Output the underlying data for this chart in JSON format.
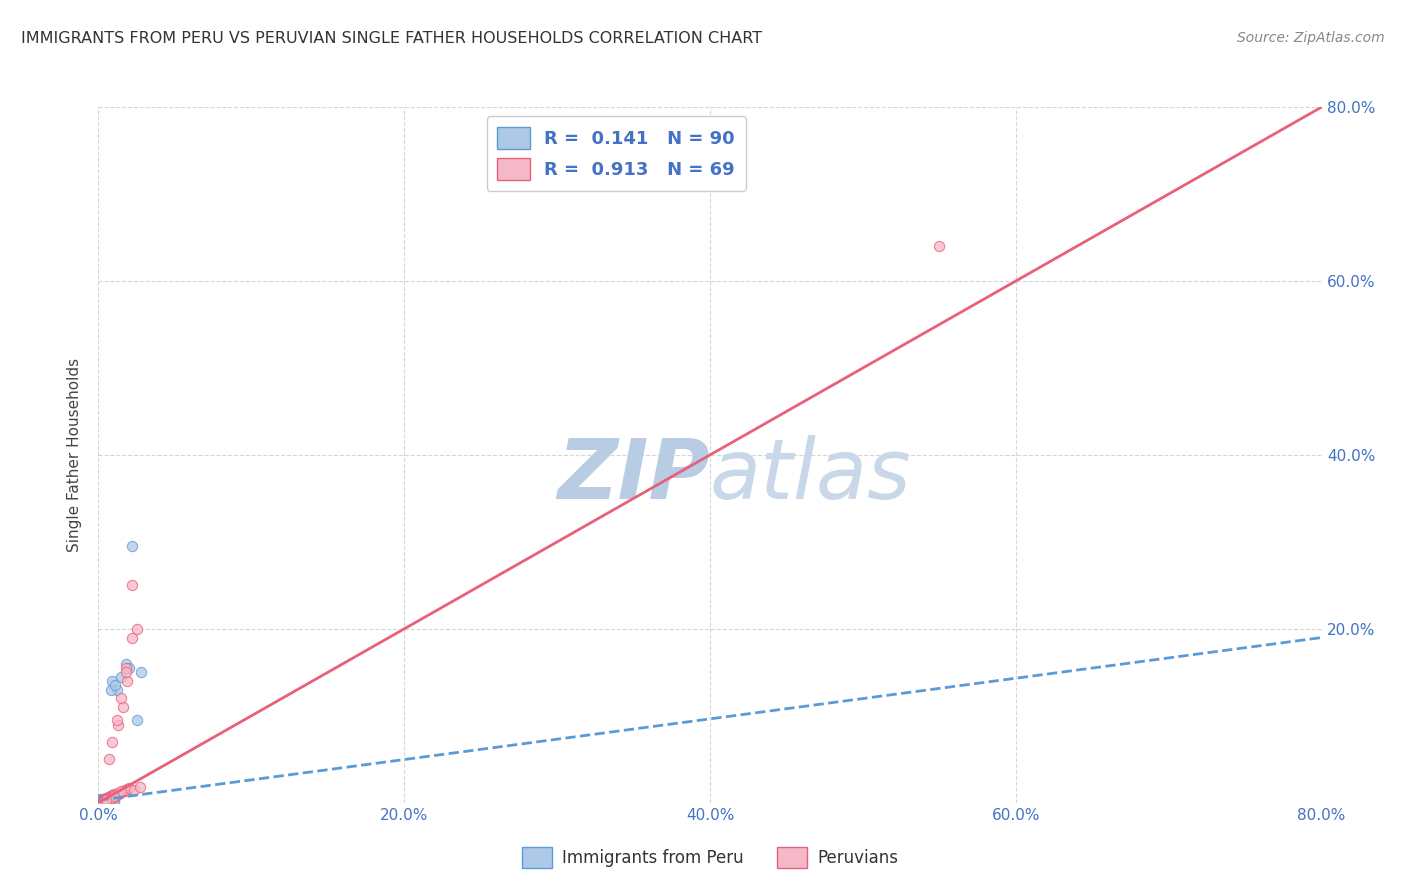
{
  "title": "IMMIGRANTS FROM PERU VS PERUVIAN SINGLE FATHER HOUSEHOLDS CORRELATION CHART",
  "source": "Source: ZipAtlas.com",
  "ylabel": "Single Father Households",
  "xlim": [
    0.0,
    0.8
  ],
  "ylim": [
    0.0,
    0.8
  ],
  "xtick_values": [
    0.0,
    0.2,
    0.4,
    0.6,
    0.8
  ],
  "xtick_labels": [
    "0.0%",
    "20.0%",
    "40.0%",
    "60.0%",
    "80.0%"
  ],
  "ytick_values": [
    0.2,
    0.4,
    0.6,
    0.8
  ],
  "ytick_labels": [
    "20.0%",
    "40.0%",
    "60.0%",
    "80.0%"
  ],
  "legend_labels": [
    "Immigrants from Peru",
    "Peruvians"
  ],
  "color_blue_fill": "#aec8e8",
  "color_blue_edge": "#5b9bd5",
  "color_blue_line": "#5b9bd5",
  "color_pink_fill": "#f4b8c8",
  "color_pink_edge": "#e8607a",
  "color_pink_line": "#e8607a",
  "color_blue_text": "#4472c4",
  "color_watermark": "#d0dff0",
  "background": "#ffffff",
  "blue_scatter_x": [
    0.0005,
    0.001,
    0.0015,
    0.002,
    0.0025,
    0.003,
    0.003,
    0.0035,
    0.004,
    0.004,
    0.0045,
    0.005,
    0.005,
    0.0055,
    0.006,
    0.006,
    0.0065,
    0.007,
    0.007,
    0.0075,
    0.001,
    0.0015,
    0.002,
    0.0025,
    0.003,
    0.0035,
    0.004,
    0.0045,
    0.005,
    0.0055,
    0.001,
    0.002,
    0.003,
    0.004,
    0.005,
    0.006,
    0.007,
    0.008,
    0.009,
    0.01,
    0.0005,
    0.001,
    0.0015,
    0.002,
    0.002,
    0.003,
    0.003,
    0.004,
    0.004,
    0.005,
    0.0005,
    0.001,
    0.001,
    0.002,
    0.002,
    0.003,
    0.003,
    0.004,
    0.005,
    0.006,
    0.001,
    0.002,
    0.002,
    0.003,
    0.004,
    0.005,
    0.006,
    0.007,
    0.008,
    0.01,
    0.0005,
    0.001,
    0.001,
    0.002,
    0.0015,
    0.0025,
    0.003,
    0.004,
    0.005,
    0.006,
    0.012,
    0.018,
    0.022,
    0.028,
    0.015,
    0.008,
    0.009,
    0.011,
    0.02,
    0.025
  ],
  "blue_scatter_y": [
    0.001,
    0.002,
    0.001,
    0.003,
    0.001,
    0.002,
    0.001,
    0.002,
    0.001,
    0.003,
    0.002,
    0.001,
    0.002,
    0.001,
    0.003,
    0.002,
    0.001,
    0.002,
    0.003,
    0.001,
    0.004,
    0.002,
    0.003,
    0.001,
    0.002,
    0.003,
    0.001,
    0.002,
    0.003,
    0.001,
    0.001,
    0.002,
    0.001,
    0.002,
    0.001,
    0.002,
    0.001,
    0.002,
    0.001,
    0.002,
    0.003,
    0.002,
    0.001,
    0.003,
    0.002,
    0.001,
    0.003,
    0.002,
    0.001,
    0.002,
    0.001,
    0.003,
    0.002,
    0.001,
    0.002,
    0.003,
    0.001,
    0.002,
    0.001,
    0.002,
    0.001,
    0.002,
    0.003,
    0.001,
    0.002,
    0.001,
    0.002,
    0.001,
    0.002,
    0.001,
    0.001,
    0.002,
    0.003,
    0.001,
    0.002,
    0.001,
    0.002,
    0.001,
    0.002,
    0.001,
    0.13,
    0.16,
    0.295,
    0.15,
    0.145,
    0.13,
    0.14,
    0.135,
    0.155,
    0.095
  ],
  "pink_scatter_x": [
    0.0005,
    0.001,
    0.0015,
    0.002,
    0.003,
    0.004,
    0.005,
    0.006,
    0.007,
    0.008,
    0.001,
    0.002,
    0.003,
    0.004,
    0.005,
    0.006,
    0.007,
    0.008,
    0.009,
    0.01,
    0.0015,
    0.003,
    0.005,
    0.007,
    0.009,
    0.011,
    0.013,
    0.015,
    0.017,
    0.019,
    0.002,
    0.004,
    0.006,
    0.008,
    0.01,
    0.012,
    0.014,
    0.016,
    0.018,
    0.02,
    0.001,
    0.003,
    0.005,
    0.007,
    0.009,
    0.011,
    0.013,
    0.015,
    0.018,
    0.022,
    0.002,
    0.004,
    0.006,
    0.008,
    0.01,
    0.013,
    0.016,
    0.019,
    0.023,
    0.027,
    0.003,
    0.005,
    0.007,
    0.009,
    0.012,
    0.015,
    0.018,
    0.022,
    0.55,
    0.025
  ],
  "pink_scatter_y": [
    0.001,
    0.001,
    0.002,
    0.002,
    0.003,
    0.004,
    0.005,
    0.006,
    0.007,
    0.008,
    0.001,
    0.002,
    0.003,
    0.004,
    0.005,
    0.006,
    0.007,
    0.008,
    0.009,
    0.01,
    0.001,
    0.002,
    0.004,
    0.005,
    0.007,
    0.008,
    0.01,
    0.012,
    0.014,
    0.016,
    0.001,
    0.003,
    0.004,
    0.006,
    0.007,
    0.009,
    0.011,
    0.013,
    0.015,
    0.017,
    0.001,
    0.002,
    0.004,
    0.006,
    0.007,
    0.009,
    0.011,
    0.013,
    0.155,
    0.19,
    0.001,
    0.003,
    0.004,
    0.006,
    0.008,
    0.09,
    0.11,
    0.14,
    0.015,
    0.018,
    0.001,
    0.003,
    0.05,
    0.07,
    0.095,
    0.12,
    0.15,
    0.25,
    0.64,
    0.2
  ],
  "blue_line_x": [
    0.0,
    0.8
  ],
  "blue_line_y": [
    0.003,
    0.19
  ],
  "pink_line_x": [
    0.0,
    0.8
  ],
  "pink_line_y": [
    0.0,
    0.8
  ]
}
